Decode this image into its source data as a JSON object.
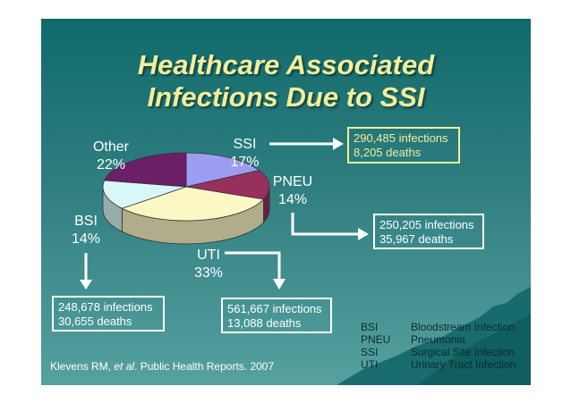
{
  "title": {
    "line1": "Healthcare Associated",
    "line2": "Infections Due to SSI"
  },
  "chart_data": {
    "type": "pie",
    "categories": [
      "SSI",
      "PNEU",
      "UTI",
      "BSI",
      "Other"
    ],
    "values": [
      17,
      14,
      33,
      14,
      22
    ],
    "labels": {
      "SSI": {
        "name": "SSI",
        "pct": "17%"
      },
      "PNEU": {
        "name": "PNEU",
        "pct": "14%"
      },
      "UTI": {
        "name": "UTI",
        "pct": "33%"
      },
      "BSI": {
        "name": "BSI",
        "pct": "14%"
      },
      "Other": {
        "name": "Other",
        "pct": "22%"
      }
    },
    "colors": [
      "#9c9cf0",
      "#98305e",
      "#fcf8c6",
      "#d8f8f8",
      "#6a1f66"
    ],
    "side_colors": [
      "#6767a8",
      "#6a1f42",
      "#b0ad8a",
      "#97adad",
      "#4a1547"
    ]
  },
  "callouts": {
    "ssi": {
      "infections": "290,485 infections",
      "deaths": "8,205 deaths"
    },
    "pneu": {
      "infections": "250,205 infections",
      "deaths": "35,967 deaths"
    },
    "bsi": {
      "infections": "248,678 infections",
      "deaths": "30,655 deaths"
    },
    "uti": {
      "infections": "561,667 infections",
      "deaths": "13,088 deaths"
    }
  },
  "legend": [
    {
      "abbr": "BSI",
      "full": "Bloodstream Infection"
    },
    {
      "abbr": "PNEU",
      "full": "Pneumonia"
    },
    {
      "abbr": "SSI",
      "full": "Surgical Site Infection"
    },
    {
      "abbr": "UTI",
      "full": "Urinary Tract Infection"
    }
  ],
  "citation": {
    "pre": "Klevens RM, ",
    "etal": "et al",
    "post": ". Public Health Reports. 2007"
  },
  "colors": {
    "title": "#f2ee9a",
    "callout_ssi": "#f2ee9a",
    "background": "#2f7e80"
  }
}
